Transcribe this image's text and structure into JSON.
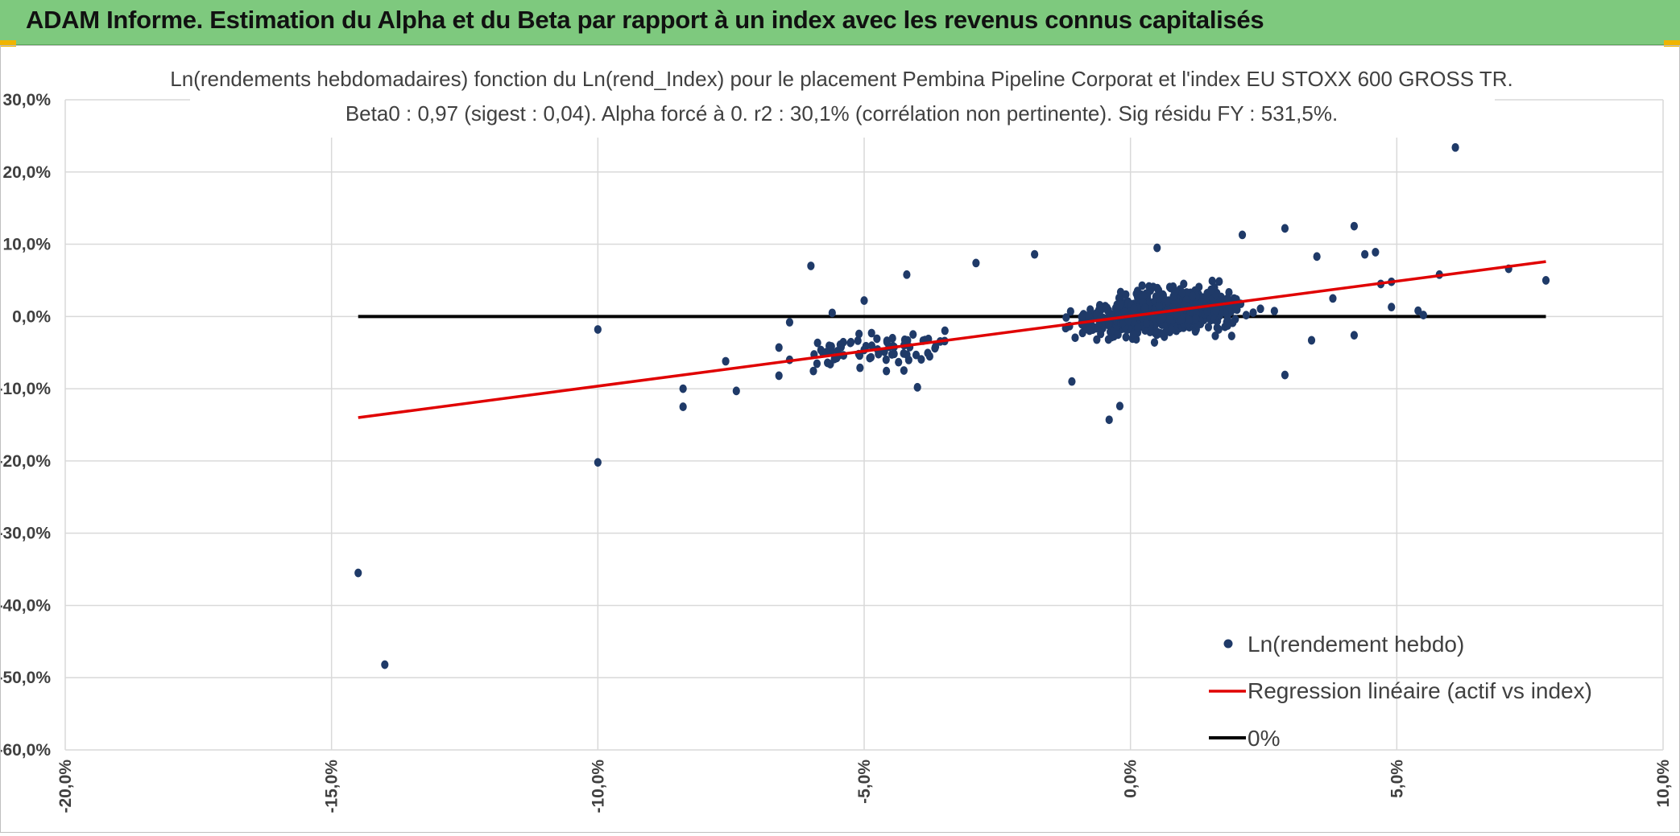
{
  "banner": {
    "title": "ADAM Informe. Estimation du Alpha et du Beta par rapport à un index avec les revenus connus capitalisés"
  },
  "colors": {
    "banner": "#7ec97e",
    "corner": "#f0b400",
    "points": "#1f3a68",
    "regression": "#e00000",
    "zero_line": "#000000",
    "grid": "#d9d9d9"
  },
  "chart_data": {
    "type": "scatter",
    "title_line1": "Ln(rendements hebdomadaires) fonction du Ln(rend_Index) pour le placement Pembina Pipeline Corporat et l'index EU STOXX 600 GROSS TR.",
    "title_line2": "Beta0 : 0,97 (sigest : 0,04). Alpha forcé à 0. r2 : 30,1% (corrélation non pertinente). Sig résidu FY : 531,5%.",
    "xlim": [
      -20,
      10
    ],
    "ylim": [
      -60,
      30
    ],
    "x_ticks": [
      "-20,0%",
      "-15,0%",
      "-10,0%",
      "-5,0%",
      "0,0%",
      "5,0%",
      "10,0%"
    ],
    "y_ticks": [
      "30,0%",
      "20,0%",
      "10,0%",
      "0,0%",
      "-10,0%",
      "-20,0%",
      "-30,0%",
      "-40,0%",
      "-50,0%",
      "-60,0%"
    ],
    "grid": true,
    "legend_position": "bottom-right",
    "legend": [
      "Ln(rendement hebdo)",
      "Regression linéaire (actif vs index)",
      "0%"
    ],
    "regression": {
      "x": [
        -14.5,
        7.8
      ],
      "y": [
        -14.0,
        7.6
      ],
      "beta": 0.97
    },
    "zero_line": {
      "x": [
        -14.5,
        7.8
      ],
      "y": [
        0,
        0
      ]
    },
    "outliers": [
      [
        -14.5,
        -35.5
      ],
      [
        -14.0,
        -48.2
      ],
      [
        -10.0,
        -20.2
      ],
      [
        -10.0,
        -1.8
      ],
      [
        -8.4,
        -12.5
      ],
      [
        -8.4,
        -10.0
      ],
      [
        -7.6,
        -6.2
      ],
      [
        -7.4,
        -10.3
      ],
      [
        -6.6,
        -4.3
      ],
      [
        -6.6,
        -8.2
      ],
      [
        -6.4,
        -0.8
      ],
      [
        -6.4,
        -6.0
      ],
      [
        -6.0,
        7.0
      ],
      [
        -5.6,
        0.5
      ],
      [
        -5.5,
        -4.8
      ],
      [
        -5.0,
        2.2
      ],
      [
        -4.2,
        5.8
      ],
      [
        -4.0,
        -9.8
      ],
      [
        -2.9,
        7.4
      ],
      [
        -1.8,
        8.6
      ],
      [
        -0.4,
        -14.3
      ],
      [
        -0.2,
        -12.4
      ],
      [
        -1.1,
        -9.0
      ],
      [
        2.9,
        -8.1
      ],
      [
        6.1,
        23.4
      ],
      [
        4.2,
        12.5
      ],
      [
        2.9,
        12.2
      ],
      [
        2.1,
        11.3
      ],
      [
        4.4,
        8.6
      ],
      [
        3.5,
        8.3
      ],
      [
        4.6,
        8.9
      ],
      [
        5.8,
        5.8
      ],
      [
        7.1,
        6.6
      ],
      [
        7.8,
        5.0
      ],
      [
        5.4,
        0.8
      ],
      [
        5.5,
        0.2
      ],
      [
        4.9,
        4.8
      ],
      [
        4.7,
        4.5
      ],
      [
        4.2,
        -2.6
      ],
      [
        4.9,
        1.3
      ],
      [
        3.4,
        -3.3
      ],
      [
        3.8,
        2.5
      ],
      [
        1.9,
        -2.7
      ],
      [
        0.5,
        9.5
      ]
    ],
    "cloud": {
      "n": 900,
      "x_range": [
        -3.6,
        3.8
      ],
      "beta": 0.97,
      "sd": 2.3
    }
  }
}
